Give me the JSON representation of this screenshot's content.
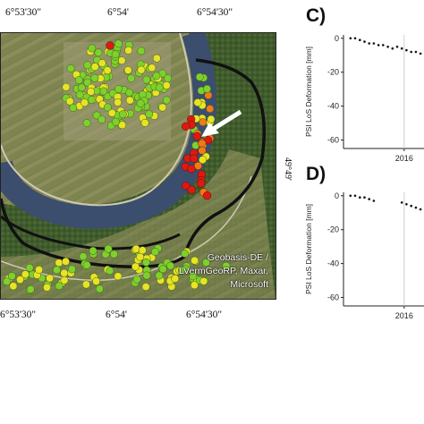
{
  "map": {
    "x_ticks_top": [
      "6°53'30\"",
      "6°54'",
      "6°54'30\""
    ],
    "x_ticks_bottom": [
      "6°53'30\"",
      "6°54'",
      "6°54'30\""
    ],
    "lat_tick": "49°49'",
    "credit_lines": [
      "Geobasis-DE /",
      "LVermGeoRP, Maxar,",
      "Microsoft"
    ],
    "colors": {
      "red": "#dd1a12",
      "orange": "#f07a18",
      "yellow": "#e6e424",
      "green": "#7cd12c",
      "boundary": "#111111",
      "river": "#3b4e6e"
    }
  },
  "panels": [
    {
      "letter": "C)",
      "ylabel": "PSI LoS Deformation [mm]",
      "yticks": [
        "0",
        "-20",
        "-40",
        "-60"
      ],
      "xtick": "2016"
    },
    {
      "letter": "D)",
      "ylabel": "PSI LoS Deformation [mm]",
      "yticks": [
        "0",
        "-20",
        "-40",
        "-60"
      ],
      "xtick": "2016"
    }
  ],
  "chart_data": [
    {
      "type": "scatter",
      "title": "C)",
      "xlabel": "",
      "ylabel": "PSI LoS Deformation [mm]",
      "ylim": [
        -65,
        2
      ],
      "x_ticks": [
        "2016"
      ],
      "series": [
        {
          "x": [
            2014.85,
            2014.95,
            2015.05,
            2015.15,
            2015.25,
            2015.35,
            2015.45,
            2015.55,
            2015.65,
            2015.75,
            2015.85,
            2015.95,
            2016.05,
            2016.15,
            2016.25,
            2016.35,
            2016.45,
            2016.55,
            2016.65,
            2016.75,
            2016.85
          ],
          "y": [
            0,
            0,
            -1,
            -2,
            -3,
            -3,
            -4,
            -4,
            -5,
            -6,
            -5,
            -6,
            -7,
            -8,
            -8,
            -9,
            -10,
            -11,
            -11,
            -13,
            -14
          ]
        }
      ]
    },
    {
      "type": "scatter",
      "title": "D)",
      "xlabel": "",
      "ylabel": "PSI LoS Deformation [mm]",
      "ylim": [
        -65,
        2
      ],
      "x_ticks": [
        "2016"
      ],
      "series": [
        {
          "x": [
            2014.85,
            2014.95,
            2015.05,
            2015.15,
            2015.25,
            2015.35,
            2015.95,
            2016.05,
            2016.15,
            2016.25,
            2016.35,
            2016.45,
            2016.55,
            2016.65,
            2016.75,
            2016.85
          ],
          "y": [
            0,
            0,
            -1,
            -1,
            -2,
            -3,
            -4,
            -5,
            -6,
            -7,
            -8,
            -9,
            -10,
            -12,
            -13,
            -14
          ]
        }
      ]
    }
  ]
}
